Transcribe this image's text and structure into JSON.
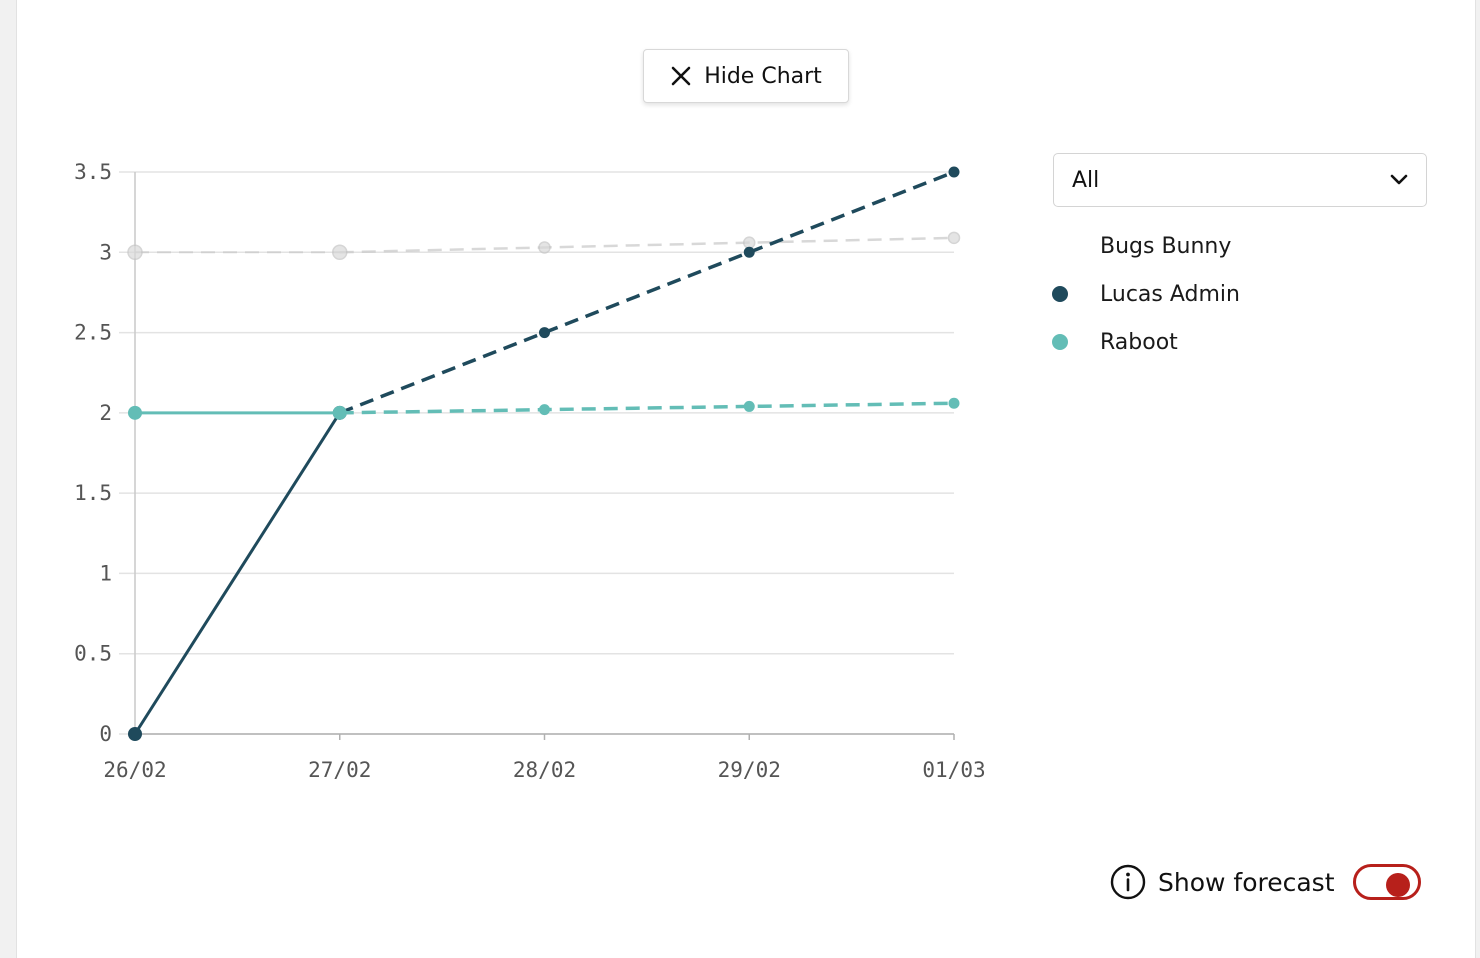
{
  "hide_chart_button": {
    "label": "Hide Chart",
    "icon": "close-icon"
  },
  "filter_select": {
    "value": "All",
    "icon": "chevron-down-icon"
  },
  "legend": [
    {
      "label": "Bugs Bunny",
      "color": ""
    },
    {
      "label": "Lucas Admin",
      "color": "#1f4a5c"
    },
    {
      "label": "Raboot",
      "color": "#63bdb6"
    }
  ],
  "forecast": {
    "label": "Show forecast",
    "enabled": true,
    "accent": "#b7201b",
    "icon": "info-icon"
  },
  "chart_data": {
    "type": "line",
    "x": [
      "26/02",
      "27/02",
      "28/02",
      "29/02",
      "01/03"
    ],
    "ylim": [
      0,
      3.5
    ],
    "yticks": [
      "0",
      "0.5",
      "1",
      "1.5",
      "2",
      "2.5",
      "3",
      "3.5"
    ],
    "grid": true,
    "legend_position": "right",
    "series": [
      {
        "name": "Bugs Bunny",
        "color": "#c8c8c8",
        "values": [
          3,
          3,
          3.03,
          3.06,
          3.09
        ],
        "actual_points": 2,
        "dimmed": true
      },
      {
        "name": "Lucas Admin",
        "color": "#1f4a5c",
        "values": [
          0,
          2,
          2.5,
          3,
          3.5
        ],
        "actual_points": 2,
        "dimmed": false
      },
      {
        "name": "Raboot",
        "color": "#63bdb6",
        "values": [
          2,
          2,
          2.02,
          2.04,
          2.06
        ],
        "actual_points": 2,
        "dimmed": false
      }
    ]
  }
}
